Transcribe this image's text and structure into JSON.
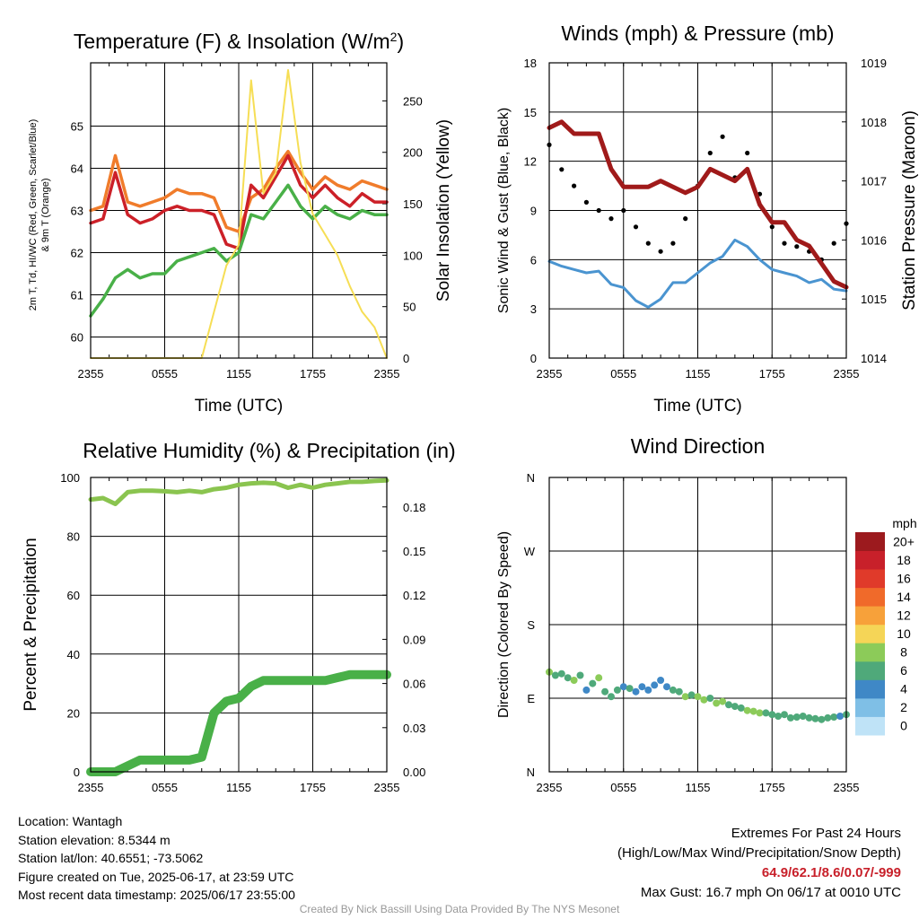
{
  "chart_data": [
    {
      "type": "line",
      "title": "Temperature (F) & Insolation (W/m²)",
      "title_main": "Temperature (F) & Insolation (W/m",
      "title_sup": "2",
      "title_end": ")",
      "xlabel": "Time (UTC)",
      "ylabel_lines": [
        "2m T, Td, HI/WC (Red, Green, Scarlet/Blue)",
        "& 9m T (Orange)"
      ],
      "y2label": "Solar Insolation (Yellow)",
      "x_ticks": [
        "2355",
        "0555",
        "1155",
        "1755",
        "2355"
      ],
      "ylim": [
        59.5,
        66.5
      ],
      "y_ticks": [
        60,
        61,
        62,
        63,
        64,
        65
      ],
      "y2lim": [
        0,
        287
      ],
      "y2_ticks": [
        0,
        50,
        100,
        150,
        200,
        250
      ],
      "x": [
        0,
        1,
        2,
        3,
        4,
        5,
        6,
        7,
        8,
        9,
        10,
        11,
        12,
        13,
        14,
        15,
        16,
        17,
        18,
        19,
        20,
        21,
        22,
        23,
        24
      ],
      "series": [
        {
          "role": "9m T",
          "color": "#f07c2b",
          "values": [
            63.0,
            63.1,
            64.3,
            63.2,
            63.1,
            63.2,
            63.3,
            63.5,
            63.4,
            63.4,
            63.3,
            62.6,
            62.5,
            63.3,
            63.5,
            64.0,
            64.4,
            63.9,
            63.5,
            63.8,
            63.6,
            63.5,
            63.7,
            63.6,
            63.5
          ]
        },
        {
          "role": "2m T",
          "color": "#cc2028",
          "values": [
            62.7,
            62.8,
            63.9,
            62.9,
            62.7,
            62.8,
            63.0,
            63.1,
            63.0,
            63.0,
            62.9,
            62.2,
            62.1,
            63.6,
            63.3,
            63.8,
            64.3,
            63.6,
            63.3,
            63.6,
            63.3,
            63.1,
            63.4,
            63.2,
            63.2
          ]
        },
        {
          "role": "2m Td",
          "color": "#49b048",
          "values": [
            60.5,
            60.9,
            61.4,
            61.6,
            61.4,
            61.5,
            61.5,
            61.8,
            61.9,
            62.0,
            62.1,
            61.8,
            62.0,
            62.9,
            62.8,
            63.2,
            63.6,
            63.1,
            62.8,
            63.1,
            62.9,
            62.8,
            63.0,
            62.9,
            62.9
          ]
        },
        {
          "role": "Solar Insolation",
          "color": "#f6de55",
          "axis": "right",
          "values": [
            0,
            0,
            0,
            0,
            0,
            0,
            0,
            0,
            0,
            0,
            45,
            90,
            110,
            270,
            160,
            180,
            280,
            190,
            140,
            120,
            100,
            70,
            45,
            30,
            0
          ]
        }
      ]
    },
    {
      "type": "line",
      "title": "Winds (mph) & Pressure (mb)",
      "xlabel": "Time (UTC)",
      "ylabel": "Sonic Wind & Gust (Blue, Black)",
      "y2label": "Station Pressure (Maroon)",
      "x_ticks": [
        "2355",
        "0555",
        "1155",
        "1755",
        "2355"
      ],
      "ylim": [
        0,
        18
      ],
      "y_ticks": [
        0,
        3,
        6,
        9,
        12,
        15,
        18
      ],
      "y2lim": [
        1014,
        1019
      ],
      "y2_ticks": [
        1014,
        1015,
        1016,
        1017,
        1018,
        1019
      ],
      "x": [
        0,
        1,
        2,
        3,
        4,
        5,
        6,
        7,
        8,
        9,
        10,
        11,
        12,
        13,
        14,
        15,
        16,
        17,
        18,
        19,
        20,
        21,
        22,
        23,
        24
      ],
      "series": [
        {
          "role": "Sonic Wind",
          "color": "#4a94d0",
          "values": [
            5.9,
            5.6,
            5.4,
            5.2,
            5.3,
            4.5,
            4.3,
            3.5,
            3.1,
            3.6,
            4.6,
            4.6,
            5.2,
            5.8,
            6.2,
            7.2,
            6.8,
            6.0,
            5.4,
            5.2,
            5.0,
            4.6,
            4.8,
            4.2,
            4.1
          ]
        },
        {
          "role": "Gust",
          "color": "#000000",
          "values": [
            13.0,
            11.5,
            10.5,
            9.5,
            9.0,
            8.5,
            9.0,
            8.0,
            7.0,
            6.5,
            7.0,
            8.5,
            10.5,
            12.5,
            13.5,
            11.0,
            12.5,
            10.0,
            8.0,
            7.0,
            6.8,
            6.5,
            6.0,
            7.0,
            8.2
          ]
        },
        {
          "role": "Station Pressure",
          "color": "#a01a1a",
          "axis": "right",
          "values": [
            1017.9,
            1018.0,
            1017.8,
            1017.8,
            1017.8,
            1017.2,
            1016.9,
            1016.9,
            1016.9,
            1017.0,
            1016.9,
            1016.8,
            1016.9,
            1017.2,
            1017.1,
            1017.0,
            1017.2,
            1016.6,
            1016.3,
            1016.3,
            1016.0,
            1015.9,
            1015.6,
            1015.3,
            1015.2
          ]
        }
      ]
    },
    {
      "type": "line",
      "title": "Relative Humidity (%) & Precipitation (in)",
      "xlabel": "",
      "ylabel": "Percent & Precipitation",
      "x_ticks": [
        "2355",
        "0555",
        "1155",
        "1755",
        "2355"
      ],
      "ylim": [
        0,
        100
      ],
      "y_ticks": [
        0,
        20,
        40,
        60,
        80,
        100
      ],
      "y2lim": [
        0,
        0.2
      ],
      "y2_ticks": [
        "0.00",
        "0.03",
        "0.06",
        "0.09",
        "0.12",
        "0.15",
        "0.18"
      ],
      "x": [
        0,
        1,
        2,
        3,
        4,
        5,
        6,
        7,
        8,
        9,
        10,
        11,
        12,
        13,
        14,
        15,
        16,
        17,
        18,
        19,
        20,
        21,
        22,
        23,
        24
      ],
      "series": [
        {
          "role": "Relative Humidity",
          "color": "#8ac44f",
          "values": [
            92.5,
            93,
            91,
            95,
            95.5,
            95.5,
            95.3,
            95,
            95.5,
            95,
            96,
            96.5,
            97.5,
            98,
            98.2,
            98,
            96.5,
            97.5,
            96.5,
            97.5,
            98,
            98.5,
            98.5,
            98.8,
            99
          ]
        },
        {
          "role": "Precipitation",
          "color": "#49b048",
          "axis": "right",
          "values": [
            0,
            0,
            0,
            0.004,
            0.008,
            0.008,
            0.008,
            0.008,
            0.008,
            0.01,
            0.04,
            0.048,
            0.05,
            0.058,
            0.062,
            0.062,
            0.062,
            0.062,
            0.062,
            0.062,
            0.064,
            0.066,
            0.066,
            0.066,
            0.066
          ]
        }
      ]
    },
    {
      "type": "scatter",
      "title": "Wind Direction",
      "ylabel": "Direction (Colored By Speed)",
      "x_ticks": [
        "2355",
        "0555",
        "1155",
        "1755",
        "2355"
      ],
      "y_ticks": [
        "N",
        "E",
        "S",
        "W",
        "N"
      ],
      "ylim": [
        0,
        360
      ],
      "colorbar": {
        "title": "mph",
        "labels": [
          "0",
          "2",
          "4",
          "6",
          "8",
          "10",
          "12",
          "14",
          "16",
          "18",
          "20+"
        ],
        "colors": [
          "#bfe3f7",
          "#7fbfe6",
          "#3f88c6",
          "#4fa97a",
          "#8ccb59",
          "#f5d557",
          "#f7a13a",
          "#f06a2a",
          "#e03a2a",
          "#c8202a",
          "#9c1a1e"
        ]
      },
      "x": [
        0,
        0.5,
        1,
        1.5,
        2,
        2.5,
        3,
        3.5,
        4,
        4.5,
        5,
        5.5,
        6,
        6.5,
        7,
        7.5,
        8,
        8.5,
        9,
        9.5,
        10,
        10.5,
        11,
        11.5,
        12,
        12.5,
        13,
        13.5,
        14,
        14.5,
        15,
        15.5,
        16,
        16.5,
        17,
        17.5,
        18,
        18.5,
        19,
        19.5,
        20,
        20.5,
        21,
        21.5,
        22,
        22.5,
        23,
        23.5,
        24
      ],
      "y": [
        122,
        118,
        120,
        115,
        112,
        118,
        100,
        108,
        115,
        98,
        92,
        100,
        104,
        102,
        98,
        104,
        100,
        106,
        112,
        104,
        100,
        98,
        92,
        94,
        92,
        88,
        90,
        84,
        86,
        82,
        80,
        78,
        75,
        74,
        72,
        72,
        70,
        68,
        70,
        66,
        67,
        68,
        66,
        65,
        64,
        66,
        67,
        68,
        70
      ],
      "speed": [
        6,
        5,
        4,
        5,
        6,
        4,
        3,
        4,
        6,
        4,
        4,
        5,
        3,
        4,
        3,
        2,
        3,
        2,
        2,
        3,
        4,
        5,
        6,
        5,
        7,
        6,
        5,
        6,
        7,
        4,
        4,
        5,
        6,
        7,
        6,
        5,
        4,
        5,
        4,
        4,
        5,
        4,
        4,
        4,
        5,
        4,
        4,
        3,
        4
      ]
    }
  ],
  "info": {
    "location": "Location: Wantagh",
    "elevation": "Station elevation: 8.5344 m",
    "latlon": "Station lat/lon: 40.6551; -73.5062",
    "created": "Figure created on Tue, 2025-06-17, at 23:59 UTC",
    "recent": "Most recent data timestamp: 2025/06/17 23:55:00"
  },
  "extremes": {
    "title": "Extremes For Past 24 Hours",
    "subtitle": "(High/Low/Max Wind/Precipitation/Snow Depth)",
    "values": "64.9/62.1/8.6/0.07/-999",
    "max_gust": "Max Gust: 16.7 mph On 06/17 at 0010 UTC",
    "color": "#c8202a"
  },
  "credit": "Created By Nick Bassill Using Data Provided By The NYS Mesonet"
}
